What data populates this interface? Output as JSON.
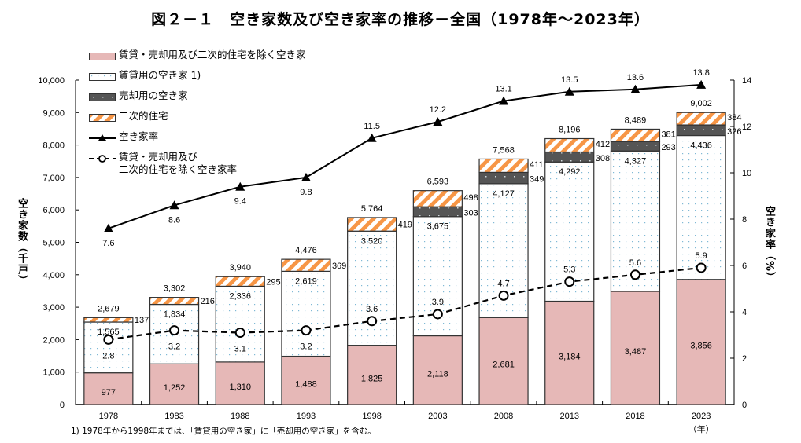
{
  "title": "図２－１　空き家数及び空き家率の推移－全国（1978年～2023年）",
  "footnote": "1)  1978年から1998年までは、「賃貸用の空き家」に「売却用の空き家」を含む。",
  "chart_data": {
    "type": "bar",
    "stacked": true,
    "title": "図２－１　空き家数及び空き家率の推移－全国（1978年～2023年）",
    "categories": [
      "1978",
      "1983",
      "1988",
      "1993",
      "1998",
      "2003",
      "2008",
      "2013",
      "2018",
      "2023"
    ],
    "x_unit_label": "（年）",
    "ylabel": "空き家数（千戸）",
    "ylabel_right": "空き家率（%）",
    "ylim": [
      0,
      10000
    ],
    "ylim_right": [
      0,
      14
    ],
    "yticks": [
      0,
      1000,
      2000,
      3000,
      4000,
      5000,
      6000,
      7000,
      8000,
      9000,
      10000
    ],
    "ytick_labels": [
      "0",
      "1,000",
      "2,000",
      "3,000",
      "4,000",
      "5,000",
      "6,000",
      "7,000",
      "8,000",
      "9,000",
      "10,000"
    ],
    "yticks_right": [
      0,
      2,
      4,
      6,
      8,
      10,
      12,
      14
    ],
    "grid": false,
    "legend_position": "top-left",
    "series": [
      {
        "name": "賃貸・売却用及び二次的住宅を除く空き家",
        "kind": "bar",
        "color": "#e6b8b7",
        "values": [
          977,
          1252,
          1310,
          1488,
          1825,
          2118,
          2681,
          3184,
          3487,
          3856
        ],
        "labels": [
          "977",
          "1,252",
          "1,310",
          "1,488",
          "1,825",
          "2,118",
          "2,681",
          "3,184",
          "3,487",
          "3,856"
        ]
      },
      {
        "name": "賃貸用の空き家 1)",
        "kind": "bar",
        "color": "#ffffff",
        "pattern": "dots",
        "values": [
          1565,
          1834,
          2336,
          2619,
          3520,
          3675,
          4127,
          4292,
          4327,
          4436
        ],
        "labels": [
          "1,565",
          "1,834",
          "2,336",
          "2,619",
          "3,520",
          "3,675",
          "4,127",
          "4,292",
          "4,327",
          "4,436"
        ]
      },
      {
        "name": "売却用の空き家",
        "kind": "bar",
        "color": "#595959",
        "pattern": "dots",
        "values": [
          0,
          0,
          0,
          0,
          0,
          303,
          349,
          308,
          293,
          326
        ],
        "labels": [
          "",
          "",
          "",
          "",
          "",
          "303",
          "349",
          "308",
          "293",
          "326"
        ]
      },
      {
        "name": "二次的住宅",
        "kind": "bar",
        "color": "#f79646",
        "pattern": "stripes",
        "values": [
          137,
          216,
          295,
          369,
          419,
          498,
          411,
          412,
          381,
          384
        ],
        "labels": [
          "137",
          "216",
          "295",
          "369",
          "419",
          "498",
          "411",
          "412",
          "381",
          "384"
        ]
      },
      {
        "name": "空き家率",
        "kind": "line",
        "axis": "right",
        "marker": "triangle",
        "style": "solid",
        "values": [
          7.6,
          8.6,
          9.4,
          9.8,
          11.5,
          12.2,
          13.1,
          13.5,
          13.6,
          13.8
        ],
        "labels": [
          "7.6",
          "8.6",
          "9.4",
          "9.8",
          "11.5",
          "12.2",
          "13.1",
          "13.5",
          "13.6",
          "13.8"
        ]
      },
      {
        "name": "賃貸・売却用及び二次的住宅を除く空き家率",
        "kind": "line",
        "axis": "right",
        "marker": "circle-open",
        "style": "dashed",
        "values": [
          2.8,
          3.2,
          3.1,
          3.2,
          3.6,
          3.9,
          4.7,
          5.3,
          5.6,
          5.9
        ],
        "labels": [
          "2.8",
          "3.2",
          "3.1",
          "3.2",
          "3.6",
          "3.9",
          "4.7",
          "5.3",
          "5.6",
          "5.9"
        ]
      }
    ],
    "totals": [
      2679,
      3302,
      3940,
      4476,
      5764,
      6593,
      7568,
      8196,
      8489,
      9002
    ],
    "total_labels": [
      "2,679",
      "3,302",
      "3,940",
      "4,476",
      "5,764",
      "6,593",
      "7,568",
      "8,196",
      "8,489",
      "9,002"
    ]
  },
  "legend": [
    {
      "label": "賃貸・売却用及び二次的住宅を除く空き家",
      "swatch": "pink"
    },
    {
      "label": "賃貸用の空き家 1)",
      "swatch": "dots-white"
    },
    {
      "label": "売却用の空き家",
      "swatch": "dots-dark"
    },
    {
      "label": "二次的住宅",
      "swatch": "stripes"
    },
    {
      "label": "空き家率",
      "swatch": "line-triangle"
    },
    {
      "label": "賃貸・売却用及び\n二次的住宅を除く空き家率",
      "swatch": "line-circle"
    }
  ]
}
